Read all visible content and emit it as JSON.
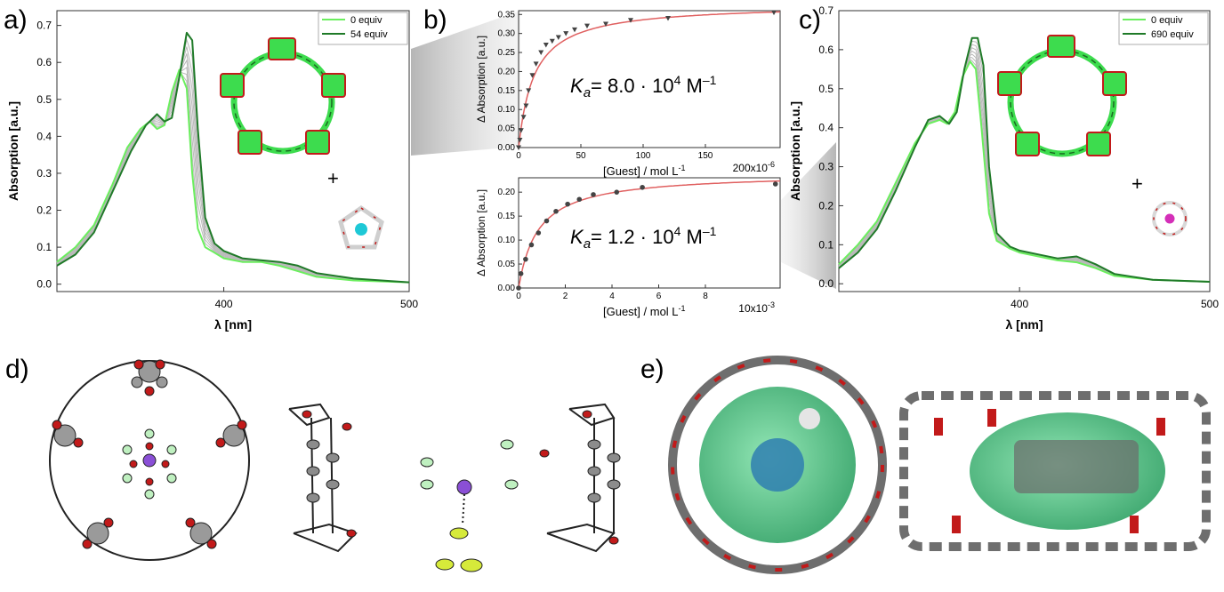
{
  "panel_labels": {
    "a": "a)",
    "b": "b)",
    "c": "c)",
    "d": "d)",
    "e": "e)"
  },
  "colors": {
    "light_green": "#6bee5e",
    "dark_green": "#1f7a28",
    "grey_trace": "#b9b9b9",
    "fit_red": "#e06060",
    "point": "#444444",
    "cyan_ion": "#1ec8d6",
    "magenta_ion": "#d42fb8",
    "oxygen_red": "#c21a1a",
    "cage_green": "#3ddc4e"
  },
  "plus_sign": "+",
  "chart_data": [
    {
      "id": "a",
      "type": "line",
      "xlabel": "λ [nm]",
      "ylabel": "Absorption [a.u.]",
      "xlim": [
        310,
        500
      ],
      "ylim": [
        -0.02,
        0.74
      ],
      "xticks": [
        400,
        500
      ],
      "yticks": [
        0.0,
        0.1,
        0.2,
        0.3,
        0.4,
        0.5,
        0.6,
        0.7
      ],
      "legend_position": "top-right",
      "series": [
        {
          "name": "0 equiv",
          "color": "#6bee5e",
          "x": [
            310,
            320,
            330,
            340,
            348,
            355,
            360,
            364,
            368,
            372,
            376,
            380,
            383,
            386,
            390,
            395,
            400,
            410,
            420,
            430,
            440,
            450,
            470,
            500
          ],
          "y": [
            0.06,
            0.1,
            0.16,
            0.27,
            0.37,
            0.42,
            0.44,
            0.42,
            0.43,
            0.52,
            0.58,
            0.53,
            0.3,
            0.15,
            0.1,
            0.085,
            0.07,
            0.06,
            0.06,
            0.05,
            0.035,
            0.02,
            0.01,
            0.005
          ]
        },
        {
          "name": "54 equiv",
          "color": "#1f7a28",
          "x": [
            310,
            320,
            330,
            340,
            350,
            358,
            364,
            368,
            372,
            376,
            380,
            383,
            386,
            390,
            395,
            400,
            410,
            420,
            430,
            440,
            450,
            470,
            500
          ],
          "y": [
            0.05,
            0.08,
            0.14,
            0.25,
            0.36,
            0.43,
            0.46,
            0.44,
            0.45,
            0.56,
            0.68,
            0.66,
            0.42,
            0.18,
            0.11,
            0.09,
            0.07,
            0.065,
            0.06,
            0.05,
            0.03,
            0.015,
            0.005
          ]
        }
      ]
    },
    {
      "id": "b_top",
      "type": "scatter",
      "xlabel": "[Guest]  / mol L-1",
      "ylabel": "Δ Absorption [a.u.]",
      "x_multiplier": "200x10-6",
      "xlim": [
        0,
        210
      ],
      "ylim": [
        0,
        0.36
      ],
      "xticks": [
        0,
        50,
        100,
        150
      ],
      "yticks": [
        0.0,
        0.05,
        0.1,
        0.15,
        0.2,
        0.25,
        0.3,
        0.35
      ],
      "annotation": "Ka= 8.0 · 10^4 M^–1",
      "points": [
        {
          "x": 0,
          "y": 0.0
        },
        {
          "x": 1,
          "y": 0.02
        },
        {
          "x": 2,
          "y": 0.045
        },
        {
          "x": 4,
          "y": 0.08
        },
        {
          "x": 6,
          "y": 0.11
        },
        {
          "x": 8,
          "y": 0.15
        },
        {
          "x": 11,
          "y": 0.19
        },
        {
          "x": 14,
          "y": 0.22
        },
        {
          "x": 18,
          "y": 0.25
        },
        {
          "x": 22,
          "y": 0.27
        },
        {
          "x": 27,
          "y": 0.28
        },
        {
          "x": 32,
          "y": 0.29
        },
        {
          "x": 38,
          "y": 0.3
        },
        {
          "x": 45,
          "y": 0.31
        },
        {
          "x": 55,
          "y": 0.32
        },
        {
          "x": 70,
          "y": 0.325
        },
        {
          "x": 90,
          "y": 0.335
        },
        {
          "x": 120,
          "y": 0.34
        },
        {
          "x": 205,
          "y": 0.355
        }
      ],
      "fit": {
        "color": "#e06060",
        "model": "binding",
        "ymax": 0.378,
        "k": 0.08
      }
    },
    {
      "id": "b_bottom",
      "type": "scatter",
      "xlabel": "[Guest]  / mol L-1",
      "ylabel": "Δ Absorption [a.u.]",
      "x_multiplier": "10x10-3",
      "xlim": [
        0,
        11.2
      ],
      "ylim": [
        0,
        0.23
      ],
      "xticks": [
        0,
        2,
        4,
        6,
        8
      ],
      "yticks": [
        0.0,
        0.05,
        0.1,
        0.15,
        0.2
      ],
      "annotation": "Ka= 1.2 · 10^4 M^–1",
      "points": [
        {
          "x": 0,
          "y": 0.0
        },
        {
          "x": 0.1,
          "y": 0.03
        },
        {
          "x": 0.3,
          "y": 0.06
        },
        {
          "x": 0.55,
          "y": 0.09
        },
        {
          "x": 0.85,
          "y": 0.115
        },
        {
          "x": 1.2,
          "y": 0.14
        },
        {
          "x": 1.6,
          "y": 0.16
        },
        {
          "x": 2.1,
          "y": 0.175
        },
        {
          "x": 2.6,
          "y": 0.185
        },
        {
          "x": 3.2,
          "y": 0.195
        },
        {
          "x": 4.2,
          "y": 0.2
        },
        {
          "x": 5.3,
          "y": 0.21
        },
        {
          "x": 11.0,
          "y": 0.217
        }
      ],
      "fit": {
        "color": "#e06060",
        "model": "binding",
        "ymax": 0.24,
        "k": 1.2
      }
    },
    {
      "id": "c",
      "type": "line",
      "xlabel": "λ [nm]",
      "ylabel": "Absorption [a.u.]",
      "xlim": [
        305,
        500
      ],
      "ylim": [
        -0.02,
        0.7
      ],
      "xticks": [
        400,
        500
      ],
      "yticks": [
        0.0,
        0.1,
        0.2,
        0.3,
        0.4,
        0.5,
        0.6,
        0.7
      ],
      "legend_position": "top-right",
      "series": [
        {
          "name": "0 equiv",
          "color": "#6bee5e",
          "x": [
            305,
            315,
            325,
            335,
            345,
            352,
            358,
            362,
            366,
            370,
            374,
            377,
            380,
            384,
            388,
            395,
            400,
            410,
            420,
            430,
            440,
            450,
            470,
            500
          ],
          "y": [
            0.05,
            0.1,
            0.16,
            0.26,
            0.36,
            0.41,
            0.42,
            0.41,
            0.44,
            0.53,
            0.57,
            0.55,
            0.4,
            0.18,
            0.11,
            0.09,
            0.08,
            0.07,
            0.06,
            0.055,
            0.04,
            0.02,
            0.01,
            0.005
          ]
        },
        {
          "name": "690 equiv",
          "color": "#1f7a28",
          "x": [
            305,
            315,
            325,
            335,
            345,
            352,
            358,
            363,
            367,
            371,
            375,
            378,
            381,
            384,
            388,
            395,
            400,
            410,
            420,
            430,
            440,
            450,
            470,
            500
          ],
          "y": [
            0.04,
            0.08,
            0.14,
            0.24,
            0.35,
            0.42,
            0.43,
            0.41,
            0.44,
            0.55,
            0.63,
            0.63,
            0.56,
            0.3,
            0.13,
            0.095,
            0.085,
            0.075,
            0.065,
            0.07,
            0.05,
            0.025,
            0.01,
            0.005
          ]
        }
      ]
    }
  ]
}
